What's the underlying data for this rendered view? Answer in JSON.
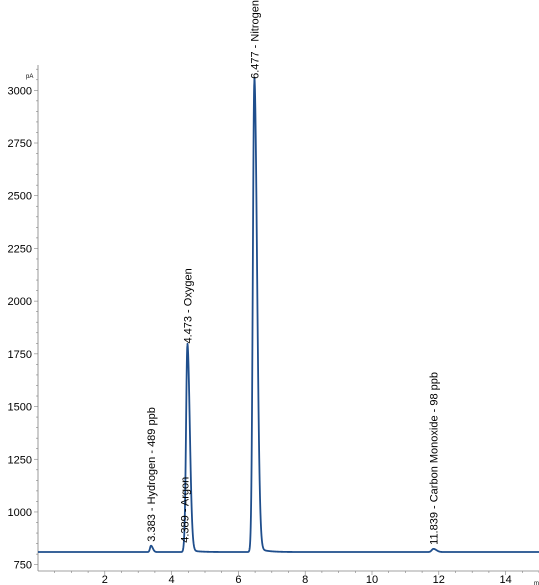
{
  "chart_data": {
    "type": "line",
    "title": "",
    "xlabel": "",
    "ylabel": "",
    "y_unit_label": "pA",
    "x_unit_label": "m",
    "xlim": [
      0,
      15
    ],
    "ylim": [
      720,
      3120
    ],
    "xticks": [
      2,
      4,
      6,
      8,
      10,
      12,
      14
    ],
    "yticks": [
      750,
      1000,
      1250,
      1500,
      1750,
      2000,
      2250,
      2500,
      2750,
      3000
    ],
    "grid": false,
    "baseline": 810,
    "line_color": "#1f4e8c",
    "series": [
      {
        "peaks": [
          {
            "x": 3.383,
            "y": 840,
            "width": 0.03
          },
          {
            "x": 4.389,
            "y": 835,
            "width": 0.03
          },
          {
            "x": 4.473,
            "y": 1780,
            "width": 0.04
          },
          {
            "x": 6.477,
            "y": 3035,
            "width": 0.045
          },
          {
            "x": 11.839,
            "y": 825,
            "width": 0.05
          }
        ]
      }
    ],
    "annotations": [
      {
        "x": 3.383,
        "y": 840,
        "text": "3.383 -  Hydrogen - 489 ppb"
      },
      {
        "x": 4.389,
        "y": 835,
        "text": "4.389 -  Argon"
      },
      {
        "x": 4.473,
        "y": 1780,
        "text": "4.473 -  Oxygen"
      },
      {
        "x": 6.477,
        "y": 3035,
        "text": "6.477 -  Nitrogen"
      },
      {
        "x": 11.839,
        "y": 825,
        "text": "11.839 -  Carbon Monoxide - 98 ppb"
      }
    ]
  }
}
